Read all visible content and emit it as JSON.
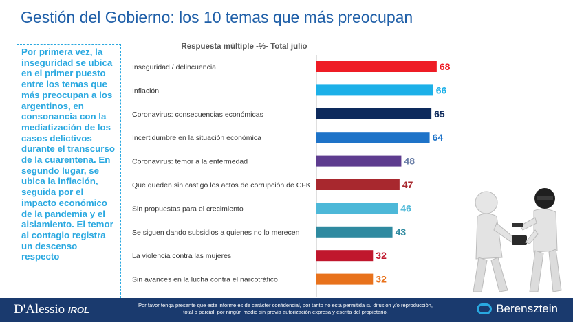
{
  "page": {
    "title": "Gestión del Gobierno: los 10 temas que más preocupan",
    "side_text": "Por primera vez, la inseguridad se ubica en el primer puesto entre los temas que más preocupan a los argentinos, en consonancia con la mediatización de los casos delictivos durante el transcurso de la cuarentena. En segundo lugar, se ubica la inflación, seguida por el impacto económico de la pandemia y el aislamiento. El temor al contagio registra un descenso respecto",
    "footer_note": "Por favor tenga presente que este informe es de carácter confidencial, por tanto no está permitida su difusión y/o reproducción, total o parcial, por ningún medio sin previa autorización expresa y escrita del propietario.",
    "logo_left": "D'Alessio",
    "logo_left_suffix": "IROL",
    "logo_right": "Berensztein"
  },
  "chart_data": {
    "type": "bar",
    "orientation": "horizontal",
    "title": "Respuesta múltiple -%- Total julio",
    "categories": [
      "Inseguridad / delincuencia",
      "Inflación",
      "Coronavirus: consecuencias económicas",
      "Incertidumbre en la situación económica",
      "Coronavirus: temor a la enfermedad",
      "Que queden sin castigo los actos de corrupción de CFK",
      "Sin propuestas para el crecimiento",
      "Se siguen dando subsidios a quienes no lo merecen",
      "La violencia contra las mujeres",
      "Sin avances en la lucha contra el narcotráfico"
    ],
    "values": [
      68,
      66,
      65,
      64,
      48,
      47,
      46,
      43,
      32,
      32
    ],
    "colors": [
      "#ee1c25",
      "#1cb0e8",
      "#0d2a5c",
      "#1e73c8",
      "#5e3c8f",
      "#a8282e",
      "#4db8d8",
      "#2f8aa0",
      "#c0172d",
      "#e8721c"
    ],
    "label_colors": [
      "#ee1c25",
      "#1cb0e8",
      "#0d2a5c",
      "#1e73c8",
      "#6b7fa8",
      "#a8282e",
      "#4db8d8",
      "#2f8aa0",
      "#c0172d",
      "#e8721c"
    ],
    "xlim": [
      0,
      70
    ],
    "grid": false
  }
}
